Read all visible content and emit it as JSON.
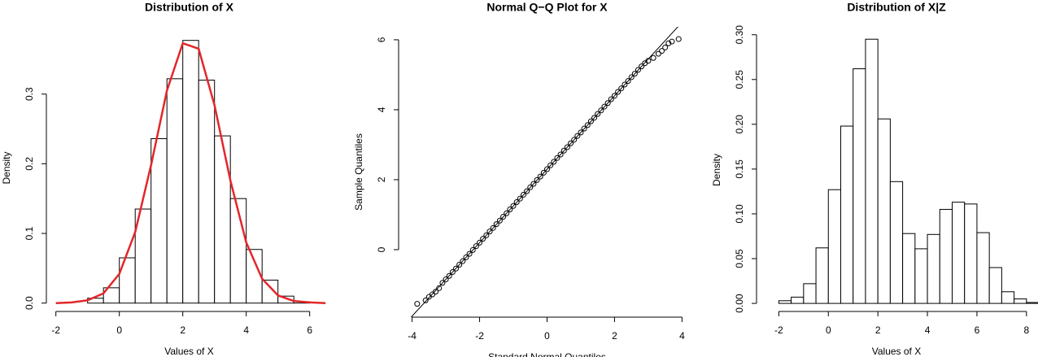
{
  "chart_data": [
    {
      "type": "histogram",
      "title": "Distribution of X",
      "xlabel": "Values of X",
      "ylabel": "Density",
      "bins": [
        -1,
        -0.5,
        0,
        0.5,
        1,
        1.5,
        2,
        2.5,
        3,
        3.5,
        4,
        4.5,
        5,
        5.5,
        6
      ],
      "values": [
        0.007,
        0.022,
        0.065,
        0.135,
        0.236,
        0.322,
        0.377,
        0.32,
        0.24,
        0.15,
        0.077,
        0.033,
        0.01,
        0.002
      ],
      "color": "#ffffff",
      "edgecolor": "#000000",
      "density_curve": {
        "color": "#e3262a",
        "x": [
          -2,
          -1.5,
          -1,
          -0.5,
          0,
          0.5,
          1,
          1.5,
          2,
          2.5,
          3,
          3.5,
          4,
          4.5,
          5,
          5.5,
          6,
          6.5
        ],
        "y": [
          0,
          0.001,
          0.004,
          0.014,
          0.042,
          0.102,
          0.198,
          0.305,
          0.373,
          0.365,
          0.284,
          0.176,
          0.087,
          0.035,
          0.011,
          0.003,
          0.001,
          0
        ]
      },
      "xlim": [
        -2.3,
        6.7
      ],
      "ylim": [
        -0.012,
        0.4
      ],
      "xticks": [
        -2,
        0,
        2,
        4,
        6
      ],
      "yticks": [
        {
          "value": 0,
          "label": "0.0"
        },
        0.1,
        0.2,
        0.3
      ]
    },
    {
      "type": "scatter",
      "title": "Normal Q−Q Plot for X",
      "xlabel": "Standard Normal Quantiles",
      "ylabel": "Sample Quantiles",
      "x": [
        -3.85,
        -3.6,
        -3.5,
        -3.4,
        -3.3,
        -3.2,
        -3.1,
        -3.0,
        -2.9,
        -2.8,
        -2.7,
        -2.6,
        -2.5,
        -2.4,
        -2.3,
        -2.2,
        -2.1,
        -2.0,
        -1.9,
        -1.8,
        -1.7,
        -1.6,
        -1.5,
        -1.4,
        -1.3,
        -1.2,
        -1.1,
        -1.0,
        -0.9,
        -0.8,
        -0.7,
        -0.6,
        -0.5,
        -0.4,
        -0.3,
        -0.2,
        -0.1,
        0,
        0.1,
        0.2,
        0.3,
        0.4,
        0.5,
        0.6,
        0.7,
        0.8,
        0.9,
        1.0,
        1.1,
        1.2,
        1.3,
        1.4,
        1.5,
        1.6,
        1.7,
        1.8,
        1.9,
        2.0,
        2.1,
        2.2,
        2.3,
        2.4,
        2.5,
        2.6,
        2.7,
        2.8,
        2.9,
        3.0,
        3.15,
        3.3,
        3.4,
        3.5,
        3.6,
        3.7,
        3.9
      ],
      "y": [
        -1.55,
        -1.45,
        -1.35,
        -1.28,
        -1.2,
        -1.1,
        -0.95,
        -0.85,
        -0.75,
        -0.64,
        -0.54,
        -0.43,
        -0.33,
        -0.22,
        -0.12,
        -0.01,
        0.1,
        0.2,
        0.31,
        0.41,
        0.52,
        0.62,
        0.73,
        0.83,
        0.94,
        1.04,
        1.15,
        1.25,
        1.36,
        1.46,
        1.57,
        1.67,
        1.78,
        1.88,
        1.99,
        2.09,
        2.2,
        2.3,
        2.41,
        2.51,
        2.62,
        2.72,
        2.83,
        2.93,
        3.04,
        3.14,
        3.25,
        3.35,
        3.46,
        3.56,
        3.67,
        3.77,
        3.88,
        3.98,
        4.09,
        4.19,
        4.3,
        4.4,
        4.51,
        4.61,
        4.72,
        4.82,
        4.93,
        5.03,
        5.14,
        5.24,
        5.33,
        5.4,
        5.48,
        5.6,
        5.68,
        5.78,
        5.9,
        5.95,
        6.02
      ],
      "color": "#000000",
      "reference_line": {
        "intercept": 2.3,
        "slope": 1.05
      },
      "xlim": [
        -4.4,
        4.4
      ],
      "ylim": [
        -1.93,
        6.37
      ],
      "xticks": [
        -4,
        -2,
        0,
        2,
        4
      ],
      "yticks": [
        0,
        2,
        4,
        6
      ]
    },
    {
      "type": "histogram",
      "title": "Distribution of X|Z",
      "xlabel": "Values of X",
      "ylabel": "Density",
      "bins": [
        -2,
        -1.5,
        -1,
        -0.5,
        0,
        0.5,
        1,
        1.5,
        2,
        2.5,
        3,
        3.5,
        4,
        4.5,
        5,
        5.5,
        6,
        6.5,
        7,
        7.5,
        8,
        8.5
      ],
      "values": [
        0.003,
        0.007,
        0.022,
        0.062,
        0.127,
        0.198,
        0.262,
        0.295,
        0.206,
        0.136,
        0.078,
        0.061,
        0.077,
        0.105,
        0.113,
        0.111,
        0.079,
        0.04,
        0.013,
        0.005,
        0.001
      ],
      "color": "#ffffff",
      "edgecolor": "#000000",
      "xlim": [
        -2.9,
        8.4
      ],
      "ylim": [
        -0.009,
        0.307
      ],
      "xticks": [
        -2,
        0,
        2,
        4,
        6,
        8
      ],
      "yticks": [
        {
          "value": 0,
          "label": "0.00"
        },
        {
          "value": 0.05,
          "label": "0.05"
        },
        {
          "value": 0.1,
          "label": "0.10"
        },
        {
          "value": 0.15,
          "label": "0.15"
        },
        {
          "value": 0.2,
          "label": "0.20"
        },
        {
          "value": 0.25,
          "label": "0.25"
        },
        {
          "value": 0.3,
          "label": "0.30"
        }
      ]
    }
  ]
}
